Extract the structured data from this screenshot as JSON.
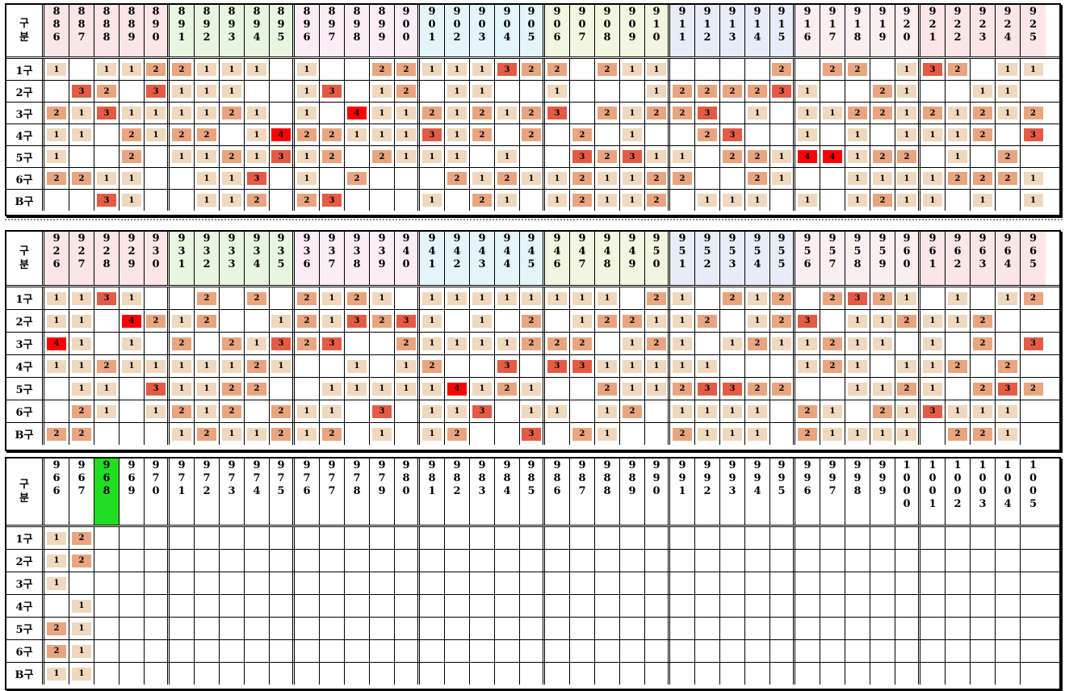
{
  "corner_label": [
    "구",
    "분"
  ],
  "row_labels": [
    "1구",
    "2구",
    "3구",
    "4구",
    "5구",
    "6구",
    "B구"
  ],
  "highlight_color": "#22dd22",
  "level_colors": {
    "1": "#efd8bd",
    "2": "#e9a580",
    "3": "#e45b45",
    "4": "#ff0000"
  },
  "group_tints": [
    "#fce5e5",
    "#e7f5e1",
    "#fcedf5",
    "#e4f4f8",
    "#f2f5df",
    "#e6ecf8",
    "#fbeef0"
  ],
  "panels": [
    {
      "columns": [
        "886",
        "887",
        "888",
        "889",
        "890",
        "891",
        "892",
        "893",
        "894",
        "895",
        "896",
        "897",
        "898",
        "899",
        "900",
        "901",
        "902",
        "903",
        "904",
        "905",
        "906",
        "907",
        "908",
        "909",
        "910",
        "911",
        "912",
        "913",
        "914",
        "915",
        "916",
        "917",
        "918",
        "919",
        "920",
        "921",
        "922",
        "923",
        "924",
        "925"
      ],
      "rows": [
        [
          1,
          0,
          1,
          1,
          2,
          2,
          1,
          1,
          1,
          0,
          1,
          0,
          0,
          2,
          2,
          1,
          1,
          1,
          3,
          2,
          2,
          0,
          2,
          1,
          1,
          0,
          0,
          0,
          0,
          2,
          0,
          2,
          2,
          0,
          1,
          3,
          2,
          0,
          1,
          1
        ],
        [
          0,
          3,
          2,
          0,
          3,
          1,
          1,
          1,
          0,
          0,
          1,
          3,
          0,
          1,
          2,
          0,
          1,
          1,
          0,
          0,
          1,
          0,
          0,
          0,
          1,
          2,
          2,
          2,
          2,
          3,
          1,
          0,
          0,
          2,
          1,
          0,
          0,
          1,
          1,
          0
        ],
        [
          2,
          1,
          3,
          1,
          1,
          1,
          1,
          2,
          1,
          0,
          1,
          0,
          4,
          1,
          1,
          2,
          1,
          2,
          1,
          2,
          3,
          0,
          2,
          1,
          2,
          2,
          3,
          0,
          1,
          0,
          1,
          1,
          2,
          2,
          1,
          2,
          1,
          2,
          1,
          2
        ],
        [
          1,
          1,
          0,
          2,
          1,
          2,
          2,
          0,
          1,
          4,
          2,
          2,
          1,
          1,
          1,
          3,
          1,
          2,
          0,
          2,
          0,
          2,
          0,
          1,
          0,
          0,
          2,
          3,
          0,
          0,
          1,
          0,
          1,
          0,
          1,
          1,
          1,
          2,
          0,
          3
        ],
        [
          1,
          0,
          0,
          2,
          0,
          1,
          1,
          2,
          1,
          3,
          1,
          2,
          0,
          2,
          1,
          1,
          1,
          0,
          1,
          0,
          0,
          3,
          2,
          3,
          1,
          1,
          0,
          2,
          2,
          1,
          4,
          4,
          1,
          2,
          2,
          0,
          1,
          0,
          2,
          0
        ],
        [
          2,
          2,
          1,
          1,
          0,
          0,
          1,
          1,
          3,
          0,
          1,
          0,
          2,
          0,
          0,
          0,
          2,
          1,
          2,
          1,
          1,
          2,
          1,
          1,
          2,
          2,
          0,
          0,
          2,
          1,
          0,
          0,
          1,
          1,
          1,
          1,
          2,
          2,
          2,
          1
        ],
        [
          0,
          0,
          3,
          1,
          0,
          0,
          1,
          1,
          2,
          0,
          2,
          3,
          0,
          0,
          0,
          1,
          0,
          2,
          1,
          0,
          1,
          2,
          1,
          1,
          2,
          0,
          1,
          1,
          1,
          0,
          1,
          0,
          1,
          2,
          1,
          1,
          0,
          1,
          0,
          1
        ]
      ]
    },
    {
      "columns": [
        "926",
        "927",
        "928",
        "929",
        "930",
        "931",
        "932",
        "933",
        "934",
        "935",
        "936",
        "937",
        "938",
        "939",
        "940",
        "941",
        "942",
        "943",
        "944",
        "945",
        "946",
        "947",
        "948",
        "949",
        "950",
        "951",
        "952",
        "953",
        "954",
        "955",
        "956",
        "957",
        "958",
        "959",
        "960",
        "961",
        "962",
        "963",
        "964",
        "965"
      ],
      "rows": [
        [
          1,
          1,
          3,
          1,
          0,
          0,
          2,
          0,
          2,
          0,
          2,
          1,
          2,
          1,
          0,
          1,
          1,
          1,
          1,
          1,
          1,
          1,
          1,
          0,
          2,
          1,
          0,
          2,
          1,
          2,
          0,
          2,
          3,
          2,
          1,
          0,
          1,
          0,
          1,
          2
        ],
        [
          1,
          1,
          0,
          4,
          2,
          1,
          2,
          0,
          0,
          1,
          2,
          1,
          3,
          2,
          3,
          1,
          0,
          1,
          0,
          2,
          0,
          1,
          2,
          2,
          1,
          1,
          2,
          0,
          1,
          2,
          3,
          0,
          1,
          1,
          2,
          1,
          1,
          2,
          0,
          0
        ],
        [
          4,
          1,
          0,
          1,
          0,
          2,
          0,
          2,
          1,
          3,
          2,
          3,
          0,
          0,
          2,
          1,
          1,
          1,
          1,
          2,
          2,
          2,
          0,
          1,
          2,
          1,
          0,
          1,
          2,
          1,
          1,
          2,
          1,
          1,
          0,
          1,
          0,
          2,
          0,
          3
        ],
        [
          1,
          1,
          2,
          1,
          1,
          1,
          1,
          1,
          2,
          1,
          0,
          0,
          1,
          0,
          1,
          2,
          0,
          0,
          3,
          0,
          3,
          3,
          1,
          1,
          1,
          1,
          1,
          0,
          0,
          0,
          1,
          2,
          1,
          0,
          1,
          1,
          2,
          0,
          2,
          0
        ],
        [
          0,
          1,
          1,
          0,
          3,
          1,
          1,
          2,
          2,
          0,
          0,
          1,
          1,
          1,
          1,
          1,
          4,
          1,
          2,
          1,
          0,
          0,
          2,
          1,
          1,
          2,
          3,
          3,
          2,
          2,
          0,
          0,
          1,
          1,
          2,
          1,
          0,
          2,
          3,
          2
        ],
        [
          0,
          2,
          1,
          0,
          1,
          2,
          1,
          2,
          0,
          2,
          1,
          1,
          0,
          3,
          0,
          1,
          1,
          3,
          0,
          1,
          1,
          0,
          1,
          2,
          0,
          1,
          1,
          1,
          1,
          0,
          2,
          1,
          0,
          2,
          1,
          3,
          1,
          1,
          1,
          0
        ],
        [
          2,
          2,
          0,
          0,
          0,
          1,
          2,
          1,
          1,
          2,
          1,
          2,
          0,
          1,
          0,
          1,
          2,
          0,
          0,
          3,
          0,
          2,
          1,
          0,
          0,
          2,
          1,
          1,
          1,
          0,
          2,
          1,
          1,
          1,
          1,
          0,
          2,
          2,
          1,
          0
        ]
      ]
    },
    {
      "columns": [
        "966",
        "967",
        "968",
        "969",
        "970",
        "971",
        "972",
        "973",
        "974",
        "975",
        "976",
        "977",
        "978",
        "979",
        "980",
        "981",
        "982",
        "983",
        "984",
        "985",
        "986",
        "987",
        "988",
        "989",
        "990",
        "991",
        "992",
        "993",
        "994",
        "995",
        "996",
        "997",
        "998",
        "999",
        "1000",
        "1001",
        "1002",
        "1003",
        "1004",
        "1005"
      ],
      "highlight_column": "968",
      "rows": [
        [
          1,
          2,
          0,
          0,
          0,
          0,
          0,
          0,
          0,
          0,
          0,
          0,
          0,
          0,
          0,
          0,
          0,
          0,
          0,
          0,
          0,
          0,
          0,
          0,
          0,
          0,
          0,
          0,
          0,
          0,
          0,
          0,
          0,
          0,
          0,
          0,
          0,
          0,
          0,
          0
        ],
        [
          1,
          2,
          0,
          0,
          0,
          0,
          0,
          0,
          0,
          0,
          0,
          0,
          0,
          0,
          0,
          0,
          0,
          0,
          0,
          0,
          0,
          0,
          0,
          0,
          0,
          0,
          0,
          0,
          0,
          0,
          0,
          0,
          0,
          0,
          0,
          0,
          0,
          0,
          0,
          0
        ],
        [
          1,
          0,
          0,
          0,
          0,
          0,
          0,
          0,
          0,
          0,
          0,
          0,
          0,
          0,
          0,
          0,
          0,
          0,
          0,
          0,
          0,
          0,
          0,
          0,
          0,
          0,
          0,
          0,
          0,
          0,
          0,
          0,
          0,
          0,
          0,
          0,
          0,
          0,
          0,
          0
        ],
        [
          0,
          1,
          0,
          0,
          0,
          0,
          0,
          0,
          0,
          0,
          0,
          0,
          0,
          0,
          0,
          0,
          0,
          0,
          0,
          0,
          0,
          0,
          0,
          0,
          0,
          0,
          0,
          0,
          0,
          0,
          0,
          0,
          0,
          0,
          0,
          0,
          0,
          0,
          0,
          0
        ],
        [
          2,
          1,
          0,
          0,
          0,
          0,
          0,
          0,
          0,
          0,
          0,
          0,
          0,
          0,
          0,
          0,
          0,
          0,
          0,
          0,
          0,
          0,
          0,
          0,
          0,
          0,
          0,
          0,
          0,
          0,
          0,
          0,
          0,
          0,
          0,
          0,
          0,
          0,
          0,
          0
        ],
        [
          2,
          1,
          0,
          0,
          0,
          0,
          0,
          0,
          0,
          0,
          0,
          0,
          0,
          0,
          0,
          0,
          0,
          0,
          0,
          0,
          0,
          0,
          0,
          0,
          0,
          0,
          0,
          0,
          0,
          0,
          0,
          0,
          0,
          0,
          0,
          0,
          0,
          0,
          0,
          0
        ],
        [
          1,
          1,
          0,
          0,
          0,
          0,
          0,
          0,
          0,
          0,
          0,
          0,
          0,
          0,
          0,
          0,
          0,
          0,
          0,
          0,
          0,
          0,
          0,
          0,
          0,
          0,
          0,
          0,
          0,
          0,
          0,
          0,
          0,
          0,
          0,
          0,
          0,
          0,
          0,
          0
        ]
      ]
    }
  ]
}
